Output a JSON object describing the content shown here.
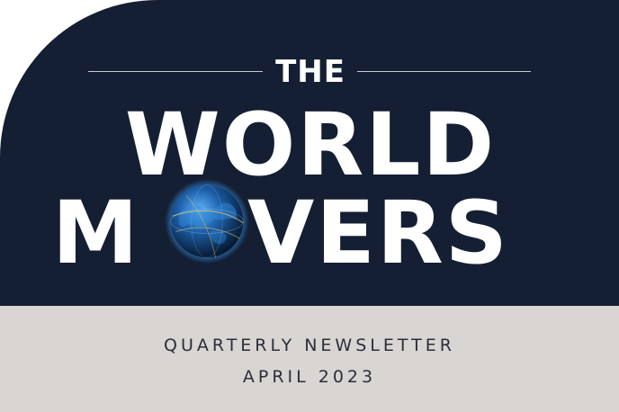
{
  "header": {
    "line1": "THE",
    "line2": "WORLD",
    "line3_left": "M",
    "line3_right": "VERS"
  },
  "footer": {
    "subtitle": "QUARTERLY NEWSLETTER",
    "date": "APRIL 2023"
  },
  "colors": {
    "navy": "#141f33",
    "gray": "#d9d5d3",
    "white": "#ffffff",
    "globe_glow": "#3aa0ff"
  },
  "icons": {
    "globe": "globe-icon"
  }
}
